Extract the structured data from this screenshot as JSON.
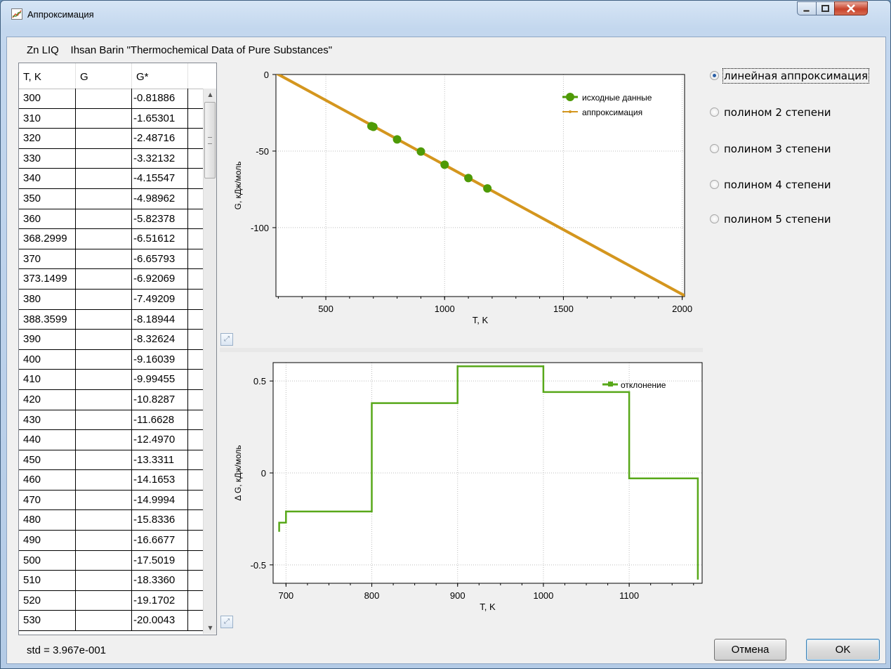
{
  "window": {
    "title": "Аппроксимация"
  },
  "header": {
    "substance": "Zn LIQ",
    "source": "Ihsan Barin \"Thermochemical Data of Pure Substances\""
  },
  "grid": {
    "columns": [
      "T, K",
      "G",
      "G*"
    ],
    "rows": [
      [
        "300",
        "",
        "-0.81886"
      ],
      [
        "310",
        "",
        "-1.65301"
      ],
      [
        "320",
        "",
        "-2.48716"
      ],
      [
        "330",
        "",
        "-3.32132"
      ],
      [
        "340",
        "",
        "-4.15547"
      ],
      [
        "350",
        "",
        "-4.98962"
      ],
      [
        "360",
        "",
        "-5.82378"
      ],
      [
        "368.2999",
        "",
        "-6.51612"
      ],
      [
        "370",
        "",
        "-6.65793"
      ],
      [
        "373.1499",
        "",
        "-6.92069"
      ],
      [
        "380",
        "",
        "-7.49209"
      ],
      [
        "388.3599",
        "",
        "-8.18944"
      ],
      [
        "390",
        "",
        "-8.32624"
      ],
      [
        "400",
        "",
        "-9.16039"
      ],
      [
        "410",
        "",
        "-9.99455"
      ],
      [
        "420",
        "",
        "-10.8287"
      ],
      [
        "430",
        "",
        "-11.6628"
      ],
      [
        "440",
        "",
        "-12.4970"
      ],
      [
        "450",
        "",
        "-13.3311"
      ],
      [
        "460",
        "",
        "-14.1653"
      ],
      [
        "470",
        "",
        "-14.9994"
      ],
      [
        "480",
        "",
        "-15.8336"
      ],
      [
        "490",
        "",
        "-16.6677"
      ],
      [
        "500",
        "",
        "-17.5019"
      ],
      [
        "510",
        "",
        "-18.3360"
      ],
      [
        "520",
        "",
        "-19.1702"
      ],
      [
        "530",
        "",
        "-20.0043"
      ]
    ]
  },
  "status": {
    "std": "std = 3.967e-001"
  },
  "options": [
    {
      "label": "линейная аппроксимация",
      "selected": true
    },
    {
      "label": "полином 2 степени",
      "selected": false
    },
    {
      "label": "полином 3 степени",
      "selected": false
    },
    {
      "label": "полином 4 степени",
      "selected": false
    },
    {
      "label": "полином 5 степени",
      "selected": false
    }
  ],
  "buttons": {
    "cancel": "Отмена",
    "ok": "OK"
  },
  "icons": {
    "app": "chart-icon",
    "minimize": "minimize-icon",
    "maximize": "maximize-icon",
    "close": "close-icon",
    "expand": "expand-icon"
  },
  "colors": {
    "data_green": "#4e9a06",
    "approx_orange": "#d4961e",
    "deviation_green": "#58a81a"
  },
  "chart_data": [
    {
      "type": "line",
      "xlabel": "T, K",
      "ylabel": "G, кДж/моль",
      "xlim": [
        290,
        2010
      ],
      "ylim": [
        -145,
        0
      ],
      "xticks": [
        500,
        1000,
        1500,
        2000
      ],
      "yticks": [
        0,
        -50,
        -100
      ],
      "grid": true,
      "legend_position": "top-right",
      "series": [
        {
          "name": "исходные данные",
          "kind": "scatter",
          "x": [
            692,
            700,
            800,
            900,
            1000,
            1100,
            1180
          ],
          "y": [
            -33.7,
            -34.2,
            -42.4,
            -50.3,
            -58.9,
            -67.6,
            -74.4
          ]
        },
        {
          "name": "аппроксимация",
          "kind": "line",
          "x": [
            290,
            2010
          ],
          "y": [
            0.9,
            -144.4
          ]
        }
      ]
    },
    {
      "type": "line",
      "xlabel": "T, K",
      "ylabel": "Δ G, кДж/моль",
      "xlim": [
        685,
        1185
      ],
      "ylim": [
        -0.6,
        0.6
      ],
      "xticks": [
        700,
        800,
        900,
        1000,
        1100
      ],
      "yticks": [
        0.5,
        0,
        -0.5
      ],
      "ytick_labels": [
        "0.5",
        "0",
        "-0.5"
      ],
      "grid": true,
      "legend_position": "top-right",
      "series": [
        {
          "name": "отклонение",
          "kind": "step",
          "x": [
            692,
            692,
            695,
            695,
            700,
            700,
            800,
            800,
            900,
            900,
            1000,
            1000,
            1100,
            1100,
            1180,
            1180
          ],
          "y": [
            -0.32,
            -0.27,
            -0.27,
            -0.27,
            -0.27,
            -0.21,
            -0.21,
            0.38,
            0.38,
            0.58,
            0.58,
            0.44,
            0.44,
            -0.03,
            -0.03,
            -0.58
          ]
        }
      ]
    }
  ]
}
